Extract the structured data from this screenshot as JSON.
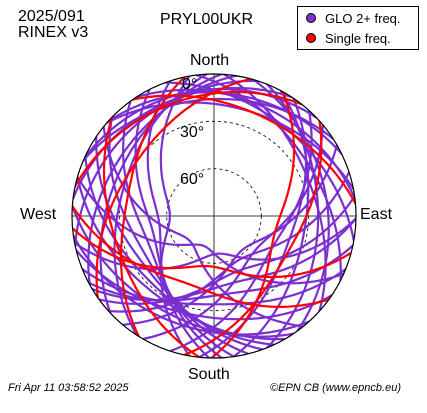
{
  "header": {
    "date": "2025/091",
    "format": "RINEX v3",
    "station": "PRYL00UKR"
  },
  "footer": {
    "timestamp": "Fri Apr 11 03:58:52 2025",
    "credit": "©EPN CB (www.epncb.eu)"
  },
  "legend": [
    {
      "label": "GLO 2+ freq.",
      "color": "#7b2fd0"
    },
    {
      "label": "Single freq.",
      "color": "#ff0000"
    }
  ],
  "chart_data": {
    "type": "polar skyplot",
    "directions": {
      "north": "North",
      "south": "South",
      "east": "East",
      "west": "West"
    },
    "elevation_rings": [
      {
        "label": "0°",
        "elev": 0
      },
      {
        "label": "30°",
        "elev": 30
      },
      {
        "label": "60°",
        "elev": 60
      }
    ],
    "colors": {
      "multi": "#7b2fd0",
      "single": "#ff0000"
    },
    "tracks": [
      {
        "type": "multi",
        "max_elev": 62,
        "max_az": 270,
        "half_width": 80
      },
      {
        "type": "multi",
        "max_elev": 55,
        "max_az": 262,
        "half_width": 80
      },
      {
        "type": "multi",
        "max_elev": 50,
        "max_az": 255,
        "half_width": 78
      },
      {
        "type": "multi",
        "max_elev": 45,
        "max_az": 248,
        "half_width": 76
      },
      {
        "type": "multi",
        "max_elev": 40,
        "max_az": 240,
        "half_width": 74
      },
      {
        "type": "multi",
        "max_elev": 36,
        "max_az": 232,
        "half_width": 72
      },
      {
        "type": "multi",
        "max_elev": 32,
        "max_az": 225,
        "half_width": 70
      },
      {
        "type": "multi",
        "max_elev": 28,
        "max_az": 218,
        "half_width": 68
      },
      {
        "type": "multi",
        "max_elev": 22,
        "max_az": 210,
        "half_width": 64
      },
      {
        "type": "multi",
        "max_elev": 18,
        "max_az": 200,
        "half_width": 62
      },
      {
        "type": "multi",
        "max_elev": 26,
        "max_az": 190,
        "half_width": 66
      },
      {
        "type": "multi",
        "max_elev": 34,
        "max_az": 180,
        "half_width": 68
      },
      {
        "type": "multi",
        "max_elev": 40,
        "max_az": 172,
        "half_width": 70
      },
      {
        "type": "multi",
        "max_elev": 46,
        "max_az": 165,
        "half_width": 74
      },
      {
        "type": "multi",
        "max_elev": 52,
        "max_az": 158,
        "half_width": 76
      },
      {
        "type": "multi",
        "max_elev": 58,
        "max_az": 150,
        "half_width": 78
      },
      {
        "type": "multi",
        "max_elev": 62,
        "max_az": 140,
        "half_width": 80
      },
      {
        "type": "multi",
        "max_elev": 56,
        "max_az": 130,
        "half_width": 80
      },
      {
        "type": "multi",
        "max_elev": 48,
        "max_az": 120,
        "half_width": 78
      },
      {
        "type": "multi",
        "max_elev": 40,
        "max_az": 110,
        "half_width": 76
      },
      {
        "type": "multi",
        "max_elev": 32,
        "max_az": 100,
        "half_width": 72
      },
      {
        "type": "multi",
        "max_elev": 24,
        "max_az": 90,
        "half_width": 68
      },
      {
        "type": "multi",
        "max_elev": 18,
        "max_az": 80,
        "half_width": 64
      },
      {
        "type": "multi",
        "max_elev": 30,
        "max_az": 285,
        "half_width": 72
      },
      {
        "type": "multi",
        "max_elev": 24,
        "max_az": 295,
        "half_width": 68
      },
      {
        "type": "multi",
        "max_elev": 20,
        "max_az": 305,
        "half_width": 64
      },
      {
        "type": "multi",
        "max_elev": 14,
        "max_az": 318,
        "half_width": 60
      },
      {
        "type": "multi",
        "max_elev": 12,
        "max_az": 335,
        "half_width": 58
      },
      {
        "type": "multi",
        "max_elev": 10,
        "max_az": 350,
        "half_width": 56
      },
      {
        "type": "multi",
        "max_elev": 12,
        "max_az": 8,
        "half_width": 56
      },
      {
        "type": "multi",
        "max_elev": 14,
        "max_az": 25,
        "half_width": 58
      },
      {
        "type": "multi",
        "max_elev": 18,
        "max_az": 40,
        "half_width": 60
      },
      {
        "type": "multi",
        "max_elev": 22,
        "max_az": 55,
        "half_width": 62
      },
      {
        "type": "multi",
        "max_elev": 26,
        "max_az": 68,
        "half_width": 64
      },
      {
        "type": "multi",
        "max_elev": 16,
        "max_az": 355,
        "half_width": 62
      },
      {
        "type": "multi",
        "max_elev": 20,
        "max_az": 15,
        "half_width": 64
      },
      {
        "type": "multi",
        "max_elev": 68,
        "max_az": 225,
        "half_width": 84
      },
      {
        "type": "multi",
        "max_elev": 70,
        "max_az": 200,
        "half_width": 86
      },
      {
        "type": "multi",
        "max_elev": 66,
        "max_az": 175,
        "half_width": 84
      },
      {
        "type": "single",
        "max_elev": 26,
        "max_az": 250,
        "half_width": 64
      },
      {
        "type": "single",
        "max_elev": 34,
        "max_az": 280,
        "half_width": 68
      },
      {
        "type": "single",
        "max_elev": 44,
        "max_az": 200,
        "half_width": 74
      },
      {
        "type": "single",
        "max_elev": 58,
        "max_az": 185,
        "half_width": 80
      },
      {
        "type": "single",
        "max_elev": 38,
        "max_az": 120,
        "half_width": 72
      },
      {
        "type": "single",
        "max_elev": 50,
        "max_az": 105,
        "half_width": 76
      },
      {
        "type": "single",
        "max_elev": 20,
        "max_az": 25,
        "half_width": 60
      },
      {
        "type": "single",
        "max_elev": 14,
        "max_az": 340,
        "half_width": 58
      },
      {
        "type": "single",
        "max_elev": 30,
        "max_az": 305,
        "half_width": 70
      }
    ]
  }
}
